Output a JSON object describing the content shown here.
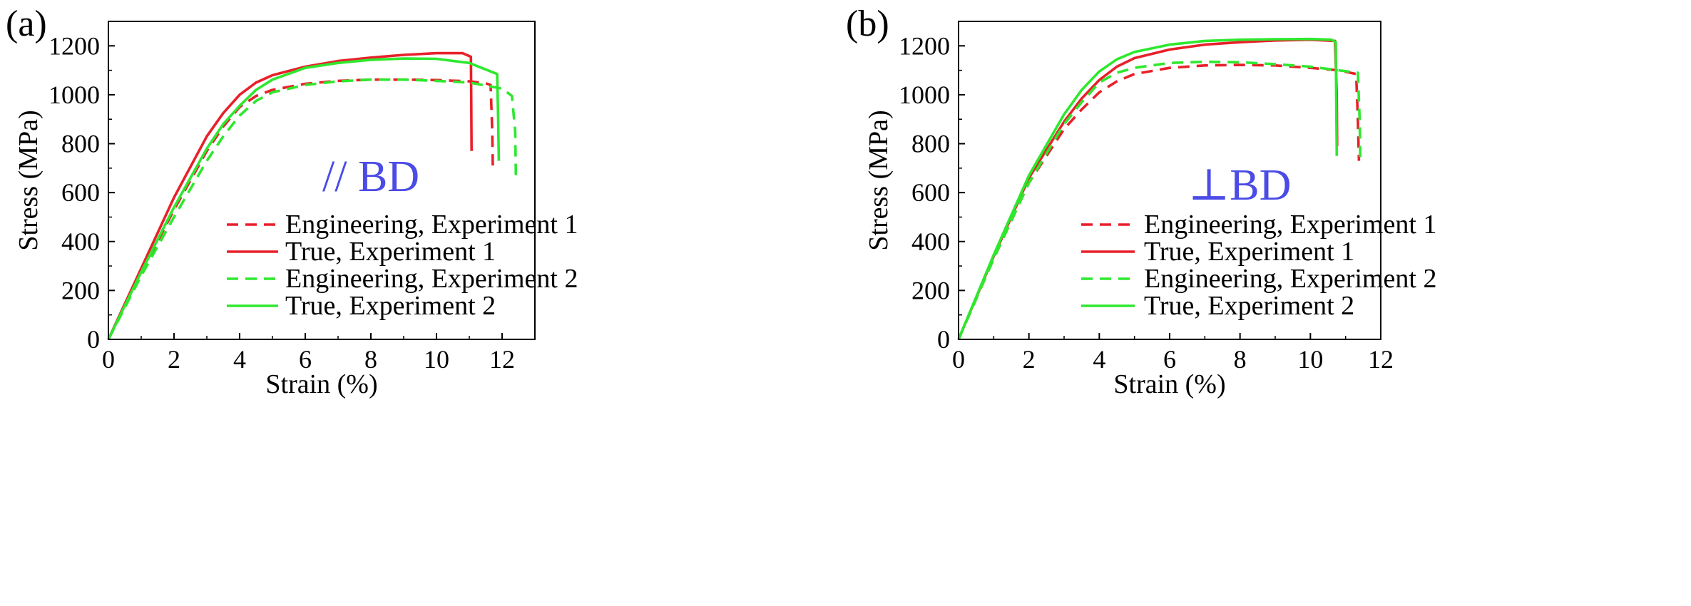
{
  "chart_data": [
    {
      "type": "line",
      "panel_label": "(a)",
      "annotation": "// BD",
      "xlabel": "Strain (%)",
      "ylabel": "Stress (MPa)",
      "xlim": [
        0,
        13
      ],
      "ylim": [
        0,
        1300
      ],
      "xticks": [
        0,
        2,
        4,
        6,
        8,
        10,
        12
      ],
      "yticks": [
        0,
        200,
        400,
        600,
        800,
        1000,
        1200
      ],
      "grid": false,
      "legend_position": "lower-right",
      "series": [
        {
          "name": "Engineering, Experiment 1",
          "color": "#e8202a",
          "dash": "dashed",
          "x": [
            0,
            1,
            2,
            3,
            3.5,
            4,
            4.5,
            5,
            6,
            7,
            8,
            9,
            10,
            11,
            11.5,
            11.65,
            11.7,
            11.72
          ],
          "y": [
            0,
            270,
            530,
            770,
            870,
            950,
            995,
            1020,
            1045,
            1057,
            1062,
            1062,
            1060,
            1055,
            1047,
            1040,
            850,
            690
          ]
        },
        {
          "name": "True, Experiment 1",
          "color": "#e8202a",
          "dash": "solid",
          "x": [
            0,
            1,
            2,
            3,
            3.5,
            4,
            4.5,
            5,
            6,
            7,
            8,
            9,
            10,
            10.8,
            11.05,
            11.06,
            11.07
          ],
          "y": [
            0,
            290,
            580,
            830,
            925,
            1000,
            1050,
            1080,
            1115,
            1138,
            1152,
            1163,
            1170,
            1170,
            1155,
            950,
            770
          ]
        },
        {
          "name": "Engineering, Experiment 2",
          "color": "#2ee82e",
          "dash": "dashed",
          "x": [
            0,
            1,
            2,
            3,
            3.5,
            4,
            4.5,
            5,
            6,
            7,
            8,
            9,
            10,
            11,
            12,
            12.3,
            12.4,
            12.42
          ],
          "y": [
            0,
            260,
            500,
            730,
            830,
            915,
            975,
            1010,
            1040,
            1055,
            1062,
            1062,
            1057,
            1050,
            1025,
            995,
            850,
            670
          ]
        },
        {
          "name": "True, Experiment 2",
          "color": "#2ee82e",
          "dash": "solid",
          "x": [
            0,
            1,
            2,
            3,
            3.5,
            4,
            4.5,
            5,
            6,
            7,
            8,
            9,
            10,
            11,
            11.85,
            11.88,
            11.9
          ],
          "y": [
            0,
            275,
            540,
            780,
            880,
            955,
            1020,
            1062,
            1110,
            1130,
            1143,
            1148,
            1147,
            1130,
            1085,
            900,
            730
          ]
        }
      ]
    },
    {
      "type": "line",
      "panel_label": "(b)",
      "annotation": "⊥BD",
      "xlabel": "Strain (%)",
      "ylabel": "Stress (MPa)",
      "xlim": [
        0,
        12
      ],
      "ylim": [
        0,
        1300
      ],
      "xticks": [
        0,
        2,
        4,
        6,
        8,
        10,
        12
      ],
      "yticks": [
        0,
        200,
        400,
        600,
        800,
        1000,
        1200
      ],
      "grid": false,
      "legend_position": "lower-right",
      "series": [
        {
          "name": "Engineering, Experiment 1",
          "color": "#e8202a",
          "dash": "dashed",
          "x": [
            0,
            1,
            2,
            3,
            3.5,
            4,
            4.5,
            5,
            6,
            7,
            8,
            9,
            10,
            10.8,
            11.3,
            11.35,
            11.38
          ],
          "y": [
            0,
            330,
            640,
            860,
            940,
            1010,
            1055,
            1085,
            1110,
            1120,
            1122,
            1120,
            1110,
            1100,
            1085,
            900,
            730
          ]
        },
        {
          "name": "True, Experiment 1",
          "color": "#e8202a",
          "dash": "solid",
          "x": [
            0,
            1,
            2,
            3,
            3.5,
            4,
            4.5,
            5,
            6,
            7,
            8,
            9,
            10,
            10.7,
            10.75,
            10.76
          ],
          "y": [
            0,
            340,
            660,
            890,
            985,
            1060,
            1115,
            1150,
            1185,
            1205,
            1215,
            1222,
            1225,
            1220,
            1000,
            790
          ]
        },
        {
          "name": "Engineering, Experiment 2",
          "color": "#2ee82e",
          "dash": "dashed",
          "x": [
            0,
            1,
            2,
            3,
            3.5,
            4,
            4.5,
            5,
            6,
            7,
            8,
            9,
            10,
            10.8,
            11.35,
            11.4,
            11.42
          ],
          "y": [
            0,
            330,
            640,
            880,
            970,
            1050,
            1090,
            1110,
            1130,
            1135,
            1133,
            1125,
            1115,
            1100,
            1090,
            900,
            720
          ]
        },
        {
          "name": "True, Experiment 2",
          "color": "#2ee82e",
          "dash": "solid",
          "x": [
            0,
            1,
            2,
            3,
            3.5,
            4,
            4.5,
            5,
            6,
            7,
            8,
            9,
            10,
            10.6,
            10.72,
            10.74,
            10.75
          ],
          "y": [
            0,
            345,
            670,
            920,
            1020,
            1095,
            1145,
            1175,
            1205,
            1220,
            1225,
            1227,
            1228,
            1225,
            1215,
            900,
            750
          ]
        }
      ]
    }
  ]
}
